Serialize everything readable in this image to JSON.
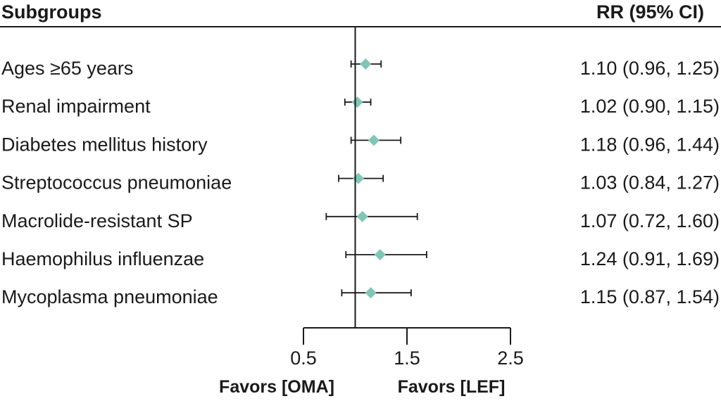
{
  "header": {
    "left": "Subgroups",
    "right": "RR (95% CI)"
  },
  "favors": {
    "left": "Favors [OMA]",
    "right": "Favors [LEF]"
  },
  "colors": {
    "marker": "#7fc6b5",
    "ink": "#1a1a1a"
  },
  "chart_data": {
    "type": "forest",
    "reference_line": 1.0,
    "xlim": [
      0.5,
      2.5
    ],
    "xticks": [
      "0.5",
      "1.5",
      "2.5"
    ],
    "rows": [
      {
        "label": "Ages  ≥65 years",
        "rr": 1.1,
        "lo": 0.96,
        "hi": 1.25,
        "text": "1.10 (0.96, 1.25)"
      },
      {
        "label": "Renal impairment",
        "rr": 1.02,
        "lo": 0.9,
        "hi": 1.15,
        "text": "1.02 (0.90, 1.15)"
      },
      {
        "label": "Diabetes mellitus history",
        "rr": 1.18,
        "lo": 0.96,
        "hi": 1.44,
        "text": "1.18 (0.96, 1.44)"
      },
      {
        "label": "Streptococcus pneumoniae",
        "rr": 1.03,
        "lo": 0.84,
        "hi": 1.27,
        "text": "1.03 (0.84, 1.27)"
      },
      {
        "label": "Macrolide-resistant SP",
        "rr": 1.07,
        "lo": 0.72,
        "hi": 1.6,
        "text": "1.07 (0.72, 1.60)"
      },
      {
        "label": "Haemophilus influenzae",
        "rr": 1.24,
        "lo": 0.91,
        "hi": 1.69,
        "text": "1.24 (0.91, 1.69)"
      },
      {
        "label": "Mycoplasma pneumoniae",
        "rr": 1.15,
        "lo": 0.87,
        "hi": 1.54,
        "text": "1.15 (0.87, 1.54)"
      }
    ]
  }
}
